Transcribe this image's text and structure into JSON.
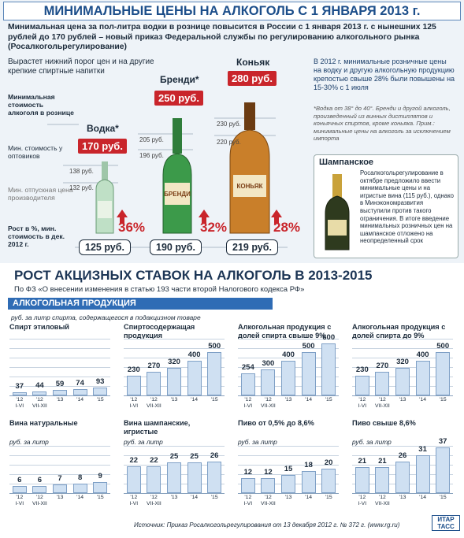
{
  "header": {
    "title": "МИНИМАЛЬНЫЕ ЦЕНЫ НА АЛКОГОЛЬ С 1 ЯНВАРЯ 2013 г.",
    "intro": "Минимальная цена за пол-литра водки в рознице повысится в России с 1 января 2013 г. с нынешних 125 рублей до 170 рублей – новый приказ Федеральной службы по регулированию алкогольного рынка (Росалкогольрегулирование)"
  },
  "minimum_prices": {
    "lead": "Вырастет нижний порог цен и на другие крепкие спиртные напитки",
    "row_labels": {
      "retail": "Минимальная стоимость алкоголя в рознице",
      "wholesale": "Мин. стоимость у оптовиков",
      "producer": "Мин. отпускная цена производителя",
      "growth": "Рост в %, мин. стоимость в дек. 2012 г."
    },
    "products": [
      {
        "name": "Водка*",
        "bottle_label": "",
        "retail": "170 руб.",
        "wholesale": "138 руб.",
        "producer": "132 руб.",
        "growth": "36%",
        "dec_2012": "125 руб."
      },
      {
        "name": "Бренди*",
        "bottle_label": "БРЕНДИ",
        "retail": "250 руб.",
        "wholesale": "205 руб.",
        "producer": "196 руб.",
        "growth": "32%",
        "dec_2012": "190 руб."
      },
      {
        "name": "Коньяк",
        "bottle_label": "КОНЬЯК",
        "retail": "280 руб.",
        "wholesale": "230 руб.",
        "producer": "220 руб.",
        "growth": "28%",
        "dec_2012": "219 руб."
      }
    ],
    "note_2012": "В 2012 г. минимальные розничные цены на водку и другую алкогольную продукцию крепостью свыше 28% были повышены на 15-30% с 1 июля",
    "footnote": "*Водка от 38° до 40°. Бренди и другой алкоголь, произведенный из винных дистиллятов и коньячных спиртов, кроме коньяка. Прим.: минимальные цены на алкоголь за исключением импорта",
    "champagne": {
      "title": "Шампанское",
      "text": "Росалкогольрегулирование в октябре предложило ввести минимальные цены и на игристые вина (115 руб.), однако в Минэкономразвития выступили против такого ограничения. В итоге введение минимальных розничных цен на шампанское отложено на неопределенный срок"
    }
  },
  "excise": {
    "title": "РОСТ АКЦИЗНЫХ СТАВОК НА АЛКОГОЛЬ В 2013-2015",
    "subtitle": "По ФЗ «О внесении изменения в статью 193 части второй Налогового кодекса РФ»",
    "band": "АЛКОГОЛЬНАЯ ПРОДУКЦИЯ",
    "unit": "руб. за литр спирта, содержащегося в подакцизном товаре"
  },
  "chart_data": [
    {
      "type": "bar",
      "title": "Спирт этиловый",
      "categories": [
        "'12\nI-VI",
        "'12\nVII-XII",
        "'13",
        "'14",
        "'15"
      ],
      "values": [
        37,
        44,
        59,
        74,
        93
      ],
      "ylim": [
        0,
        650
      ],
      "color": "#cfe0f2"
    },
    {
      "type": "bar",
      "title": "Спиртосодержащая продукция",
      "categories": [
        "'12\nI-VI",
        "'12\nVII-XII",
        "'13",
        "'14",
        "'15"
      ],
      "values": [
        230,
        270,
        320,
        400,
        500
      ],
      "ylim": [
        0,
        650
      ],
      "color": "#cfe0f2"
    },
    {
      "type": "bar",
      "title": "Алкогольная продукция с долей спирта свыше 9%",
      "categories": [
        "'12\nI-VI",
        "'12\nVII-XII",
        "'13",
        "'14",
        "'15"
      ],
      "values": [
        254,
        300,
        400,
        500,
        600
      ],
      "ylim": [
        0,
        650
      ],
      "color": "#cfe0f2"
    },
    {
      "type": "bar",
      "title": "Алкогольная продукция с долей спирта до 9%",
      "categories": [
        "'12\nI-VI",
        "'12\nVII-XII",
        "'13",
        "'14",
        "'15"
      ],
      "values": [
        230,
        270,
        320,
        400,
        500
      ],
      "ylim": [
        0,
        650
      ],
      "color": "#cfe0f2"
    },
    {
      "type": "bar",
      "title": "Вина натуральные",
      "unit": "руб. за литр",
      "categories": [
        "'12\nI-VI",
        "'12\nVII-XII",
        "'13",
        "'14",
        "'15"
      ],
      "values": [
        6,
        6,
        7,
        8,
        9
      ],
      "ylim": [
        0,
        45
      ],
      "color": "#cfe0f2"
    },
    {
      "type": "bar",
      "title": "Вина шампанские, игристые",
      "unit": "руб. за литр",
      "categories": [
        "'12\nI-VI",
        "'12\nVII-XII",
        "'13",
        "'14",
        "'15"
      ],
      "values": [
        22,
        22,
        25,
        25,
        26
      ],
      "ylim": [
        0,
        45
      ],
      "color": "#cfe0f2"
    },
    {
      "type": "bar",
      "title": "Пиво от 0,5% до 8,6%",
      "unit": "руб. за литр",
      "categories": [
        "'12\nI-VI",
        "'12\nVII-XII",
        "'13",
        "'14",
        "'15"
      ],
      "values": [
        12,
        12,
        15,
        18,
        20
      ],
      "ylim": [
        0,
        45
      ],
      "color": "#cfe0f2"
    },
    {
      "type": "bar",
      "title": "Пиво свыше 8,6%",
      "unit": "руб. за литр",
      "categories": [
        "'12\nI-VI",
        "'12\nVII-XII",
        "'13",
        "'14",
        "'15"
      ],
      "values": [
        21,
        21,
        26,
        31,
        37
      ],
      "ylim": [
        0,
        45
      ],
      "color": "#cfe0f2"
    }
  ],
  "source": "Источник: Приказ Росалкогольрегулирования от 13 декабря 2012 г. № 372 г. (www.rg.ru)",
  "logo": "ИТАР ТАСС"
}
